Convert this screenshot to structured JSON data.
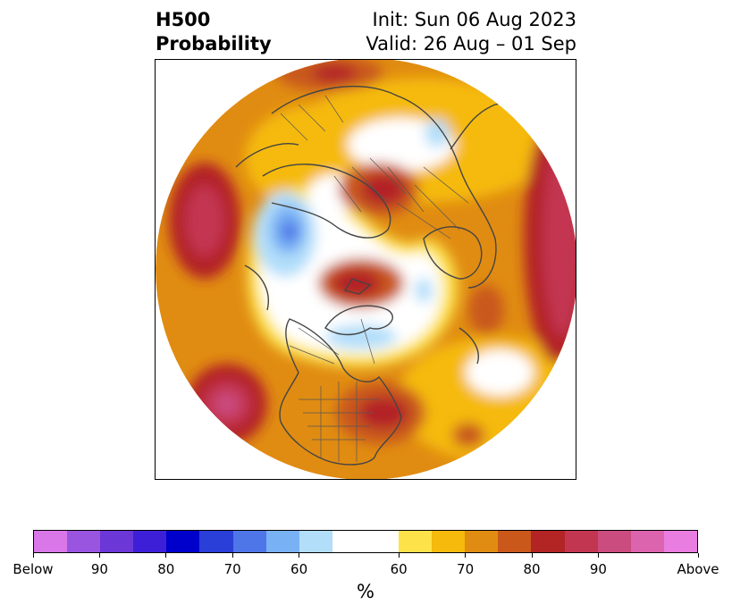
{
  "title": {
    "left_line1": "H500",
    "left_line2": "Probability",
    "right_line1": "Init: Sun 06 Aug 2023",
    "right_line2": "Valid: 26 Aug – 01 Sep"
  },
  "map": {
    "projection": "north-polar-stereographic",
    "anomalies": [
      {
        "region": "Europe / Scandinavia",
        "sign": "above",
        "max_percent": 80
      },
      {
        "region": "Western Russia",
        "sign": "above",
        "max_percent": 80
      },
      {
        "region": "Arctic (north of Greenland)",
        "sign": "above",
        "max_percent": 80
      },
      {
        "region": "Eastern United States",
        "sign": "above",
        "max_percent": 80
      },
      {
        "region": "North Pacific",
        "sign": "above",
        "max_percent": 90
      },
      {
        "region": "Central Asia / Siberia",
        "sign": "below",
        "max_percent": 80
      },
      {
        "region": "Canadian Archipelago",
        "sign": "below",
        "max_percent": 60
      }
    ]
  },
  "colorbar": {
    "label": "%",
    "colors": [
      "#d977e8",
      "#9a55e0",
      "#6b37d6",
      "#3e1fd8",
      "#0000cc",
      "#2a3ed8",
      "#4f76e8",
      "#78b1f4",
      "#b2defa",
      "#ffffff",
      "#fde24a",
      "#f5ba0b",
      "#e08c12",
      "#c9581a",
      "#b32425",
      "#c33651",
      "#cb4c7f",
      "#dc64ae",
      "#e97de0"
    ],
    "tick_labels": [
      "Below",
      "90",
      "80",
      "70",
      "60",
      "60",
      "70",
      "80",
      "90",
      "Above"
    ]
  }
}
